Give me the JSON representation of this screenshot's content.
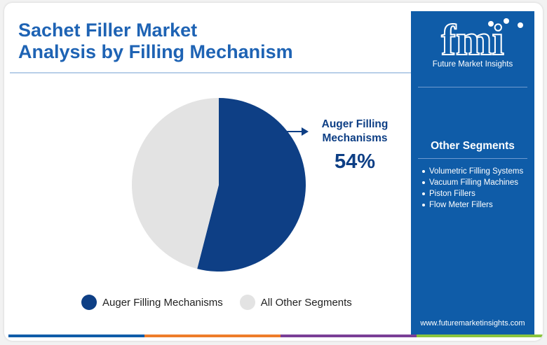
{
  "title": {
    "line1": "Sachet Filler Market",
    "line2": "Analysis by Filling Mechanism"
  },
  "chart_data": {
    "type": "pie",
    "categories": [
      "Auger Filling Mechanisms",
      "All Other Segments"
    ],
    "values": [
      54,
      46
    ],
    "colors": [
      "#0e3f85",
      "#e3e3e3"
    ],
    "title": "Sachet Filler Market Analysis by Filling Mechanism",
    "legend_position": "bottom",
    "annotation": {
      "label_line1": "Auger Filling",
      "label_line2": "Mechanisms",
      "value_text": "54%"
    }
  },
  "legend": {
    "items": [
      {
        "label": "Auger Filling Mechanisms",
        "color": "#0e3f85"
      },
      {
        "label": "All Other Segments",
        "color": "#e3e3e3"
      }
    ]
  },
  "sidebar": {
    "logo_text": "fmi",
    "logo_subtitle": "Future Market Insights",
    "heading": "Other Segments",
    "items": [
      "Volumetric Filling Systems",
      "Vacuum Filling Machines",
      "Piston Fillers",
      "Flow Meter Fillers"
    ],
    "url": "www.futuremarketinsights.com",
    "background_color": "#0f5ca8"
  },
  "accent_colors": {
    "title": "#1e63b4",
    "bottom_bar": [
      "#0f5ca8",
      "#ee7d2a",
      "#7a3f96",
      "#8bc53f"
    ]
  }
}
